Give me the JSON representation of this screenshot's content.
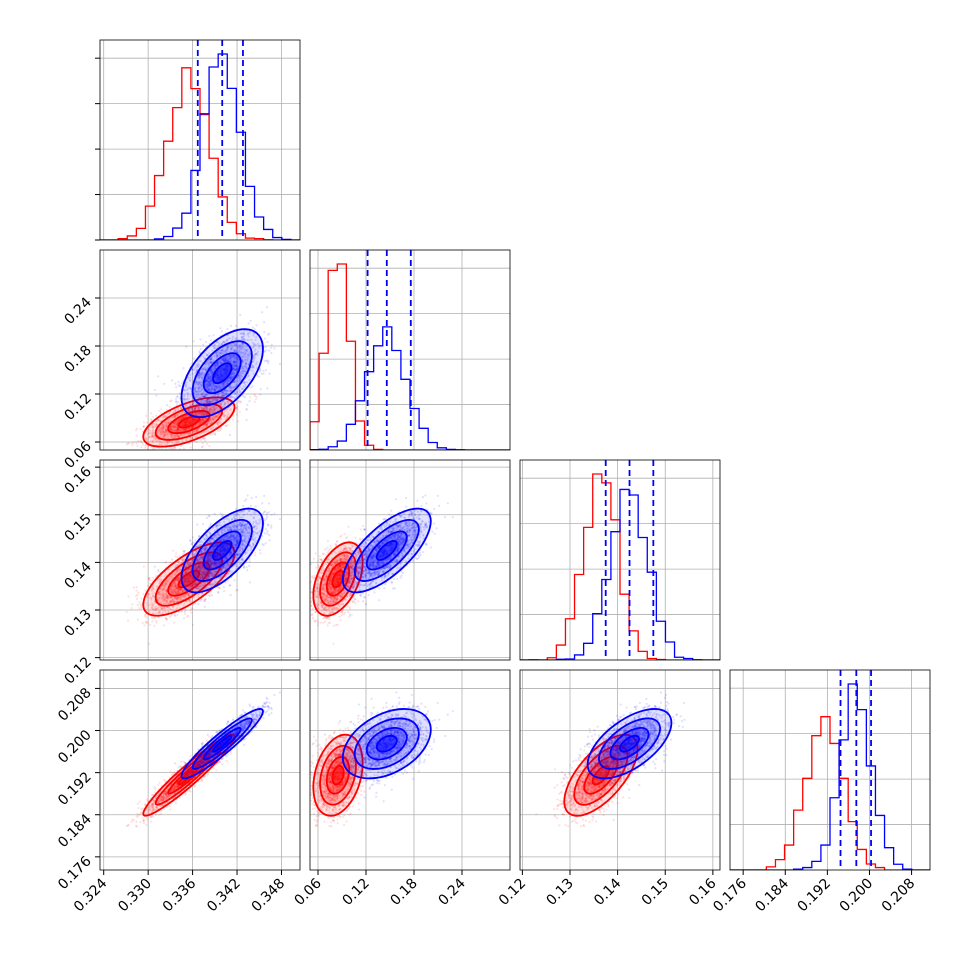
{
  "chart_data": {
    "type": "corner",
    "title": "",
    "parameters": [
      "",
      "",
      "",
      ""
    ],
    "grid": true,
    "series": [
      {
        "name": "",
        "color": "#ff0000",
        "mean": [
          0.3355,
          0.085,
          0.1365,
          0.1915
        ],
        "sigma": [
          0.0028,
          0.014,
          0.0035,
          0.0035
        ]
      },
      {
        "name": "",
        "color": "#0000ff",
        "mean": [
          0.34,
          0.146,
          0.1425,
          0.1975
        ],
        "sigma": [
          0.0025,
          0.025,
          0.004,
          0.003
        ]
      }
    ],
    "correlations": {
      "red": [
        [
          1,
          0.6,
          0.7,
          0.95
        ],
        [
          0.6,
          1,
          0.45,
          0.3
        ],
        [
          0.7,
          0.45,
          1,
          0.65
        ],
        [
          0.95,
          0.3,
          0.65,
          1
        ]
      ],
      "blue": [
        [
          1,
          0.55,
          0.65,
          0.93
        ],
        [
          0.55,
          1,
          0.7,
          0.4
        ],
        [
          0.65,
          0.7,
          1,
          0.6
        ],
        [
          0.93,
          0.4,
          0.6,
          1
        ]
      ]
    },
    "quantiles_dashed_blue": [
      [
        0.3367,
        0.34,
        0.3428
      ],
      [
        0.122,
        0.146,
        0.176
      ],
      [
        0.1375,
        0.1425,
        0.1475
      ],
      [
        0.1945,
        0.1975,
        0.2003
      ]
    ],
    "axis_ranges": [
      [
        0.3235,
        0.3505
      ],
      [
        0.05,
        0.3
      ],
      [
        0.1195,
        0.1615
      ],
      [
        0.1735,
        0.2115
      ]
    ],
    "x_ticks": [
      [
        "0.324",
        "0.330",
        "0.336",
        "0.342",
        "0.348"
      ],
      [
        "0.06",
        "0.12",
        "0.18",
        "0.24"
      ],
      [
        "0.12",
        "0.13",
        "0.14",
        "0.15",
        "0.16"
      ],
      [
        "0.176",
        "0.184",
        "0.192",
        "0.200",
        "0.208"
      ]
    ],
    "x_tick_values": [
      [
        0.324,
        0.33,
        0.336,
        0.342,
        0.348
      ],
      [
        0.06,
        0.12,
        0.18,
        0.24
      ],
      [
        0.12,
        0.13,
        0.14,
        0.15,
        0.16
      ],
      [
        0.176,
        0.184,
        0.192,
        0.2,
        0.208
      ]
    ],
    "y_ticks": {
      "row1": [
        "0.06",
        "0.12",
        "0.18",
        "0.24"
      ],
      "row2": [
        "0.12",
        "0.13",
        "0.14",
        "0.15",
        "0.16"
      ],
      "row3": [
        "0.176",
        "0.184",
        "0.192",
        "0.200",
        "0.208"
      ]
    },
    "y_tick_values": {
      "row1": [
        0.06,
        0.12,
        0.18,
        0.24
      ],
      "row2": [
        0.12,
        0.13,
        0.14,
        0.15,
        0.16
      ],
      "row3": [
        0.176,
        0.184,
        0.192,
        0.2,
        0.208
      ]
    }
  }
}
